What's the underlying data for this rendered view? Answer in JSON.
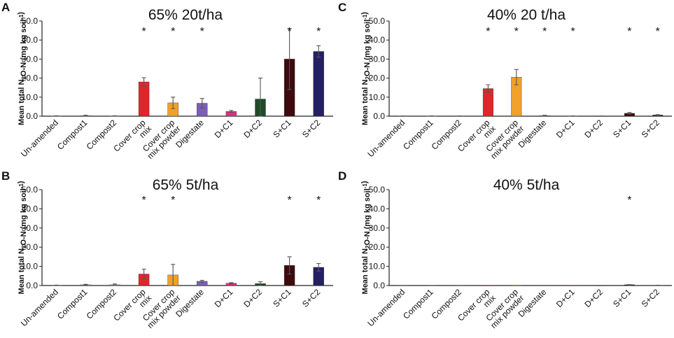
{
  "panel_letters": [
    "A",
    "B",
    "C",
    "D"
  ],
  "chart_data": [
    {
      "type": "bar",
      "panel": "A",
      "title": "65% 20t/ha",
      "ylabel": "Mean total N2O-N (mg kg soil-1)",
      "ylim": [
        0,
        50
      ],
      "yticks": [
        "0.0",
        "10.0",
        "20.0",
        "30.0",
        "40.0",
        "50.0"
      ],
      "categories": [
        "Un-amended",
        "Compost1",
        "Compost2",
        "Cover crop mix",
        "Cover crop mix powder",
        "Digestate",
        "D+C1",
        "D+C2",
        "S+C1",
        "S+C2"
      ],
      "values": [
        0.1,
        0.3,
        0.1,
        18,
        7,
        6.8,
        2.5,
        9,
        30,
        34
      ],
      "errors": [
        0.1,
        0.2,
        0.1,
        2.2,
        3,
        2.5,
        0.5,
        11,
        16,
        3
      ],
      "significant": [
        false,
        false,
        false,
        true,
        true,
        true,
        false,
        false,
        true,
        true
      ]
    },
    {
      "type": "bar",
      "panel": "B",
      "title": "65% 5t/ha",
      "ylabel": "Mean total N2O-N (mg kg soil-1)",
      "ylim": [
        0,
        50
      ],
      "yticks": [
        "0.0",
        "10.0",
        "20.0",
        "30.0",
        "40.0",
        "50.0"
      ],
      "categories": [
        "Un-amended",
        "Compost1",
        "Compost2",
        "Cover crop mix",
        "Cover crop mix powder",
        "Digestate",
        "D+C1",
        "D+C2",
        "S+C1",
        "S+C2"
      ],
      "values": [
        0.1,
        0.4,
        0.4,
        6,
        5.5,
        2.2,
        1.2,
        1,
        10.5,
        9.5
      ],
      "errors": [
        0.1,
        0.2,
        0.4,
        2.5,
        5.5,
        0.5,
        0.3,
        1,
        4.5,
        2
      ],
      "significant": [
        false,
        false,
        false,
        true,
        true,
        false,
        false,
        false,
        true,
        true
      ]
    },
    {
      "type": "bar",
      "panel": "C",
      "title": "40% 20 t/ha",
      "ylabel": "Mean total N2O-N (mg kg soil-1)",
      "ylim": [
        0,
        50
      ],
      "yticks": [
        "0.0",
        "10.0",
        "20.0",
        "30.0",
        "40.0",
        "50.0"
      ],
      "categories": [
        "Un-amended",
        "Compost1",
        "Compost2",
        "Cover crop mix",
        "Cover crop mix powder",
        "Digestate",
        "D+C1",
        "D+C2",
        "S+C1",
        "S+C2"
      ],
      "values": [
        0.05,
        0.1,
        0.05,
        14.5,
        20.5,
        0.3,
        0.1,
        0.05,
        1.5,
        0.6
      ],
      "errors": [
        0.05,
        0.05,
        0.05,
        2,
        4,
        0.2,
        0.05,
        0.05,
        0.4,
        0.2
      ],
      "significant": [
        false,
        false,
        false,
        true,
        true,
        true,
        true,
        false,
        true,
        true
      ]
    },
    {
      "type": "bar",
      "panel": "D",
      "title": "40% 5t/ha",
      "ylabel": "Mean total N2O-N (mg kg soil-1)",
      "ylim": [
        0,
        50
      ],
      "yticks": [
        "0.0",
        "10.0",
        "20.0",
        "30.0",
        "40.0",
        "50.0"
      ],
      "categories": [
        "Un-amended",
        "Compost1",
        "Compost2",
        "Cover crop mix",
        "Cover crop mix powder",
        "Digestate",
        "D+C1",
        "D+C2",
        "S+C1",
        "S+C2"
      ],
      "values": [
        0.05,
        0.05,
        0.05,
        0.05,
        0.05,
        0.05,
        0.05,
        0.05,
        0.4,
        0.1
      ],
      "errors": [
        0,
        0,
        0,
        0,
        0,
        0,
        0,
        0,
        0.1,
        0.05
      ],
      "significant": [
        false,
        false,
        false,
        false,
        false,
        false,
        false,
        false,
        true,
        false
      ]
    }
  ],
  "bar_colors": [
    "#9a9a9a",
    "#9a9a9a",
    "#9a9a9a",
    "#e0262b",
    "#f0a12a",
    "#7b5fb5",
    "#e0307a",
    "#1f4a2a",
    "#3e0a0e",
    "#232064"
  ],
  "significance_marker": "*"
}
